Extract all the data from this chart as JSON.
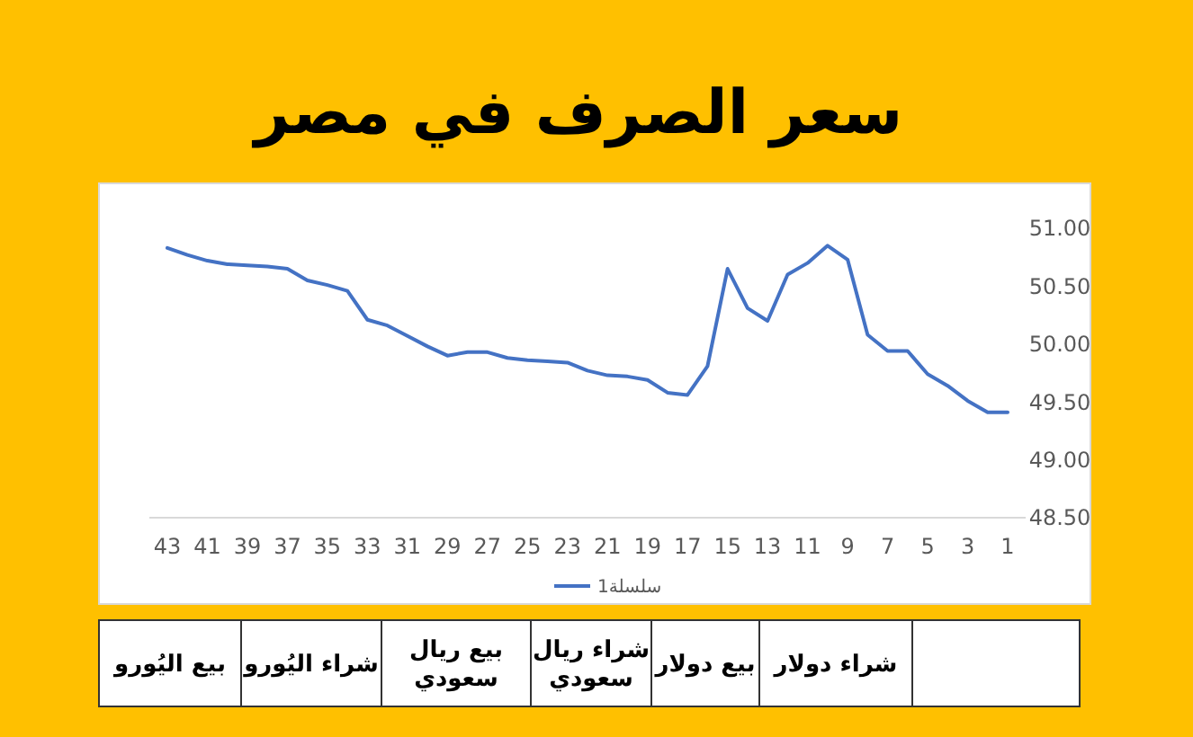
{
  "chart_data": {
    "type": "line",
    "title": "سعر الصرف في مصر",
    "categories": [
      "43",
      null,
      "41",
      null,
      "39",
      null,
      "37",
      null,
      "35",
      null,
      "33",
      null,
      "31",
      null,
      "29",
      null,
      "27",
      null,
      "25",
      null,
      "23",
      null,
      "21",
      null,
      "19",
      null,
      "17",
      null,
      "15",
      null,
      "13",
      null,
      "11",
      null,
      "9",
      null,
      "7",
      null,
      "5",
      null,
      "3",
      null,
      "1"
    ],
    "series": [
      {
        "name": "سلسلة1",
        "color": "#4472c4",
        "values": [
          50.83,
          50.77,
          50.72,
          50.69,
          50.68,
          50.67,
          50.65,
          50.55,
          50.51,
          50.46,
          50.21,
          50.16,
          50.07,
          49.98,
          49.9,
          49.93,
          49.93,
          49.88,
          49.86,
          49.85,
          49.84,
          49.77,
          49.73,
          49.72,
          49.69,
          49.58,
          49.56,
          49.81,
          50.65,
          50.31,
          50.2,
          50.6,
          50.7,
          50.85,
          50.73,
          50.08,
          49.94,
          49.94,
          49.74,
          49.64,
          49.51,
          49.41,
          49.41
        ]
      }
    ],
    "ylim": [
      48.5,
      51
    ],
    "yticks": [
      {
        "value": 48.5,
        "label": "48.50"
      },
      {
        "value": 49,
        "label": "49.00"
      },
      {
        "value": 49.5,
        "label": "49.50"
      },
      {
        "value": 50,
        "label": "50.00"
      },
      {
        "value": 50.5,
        "label": "50.50"
      },
      {
        "value": 51,
        "label": "51.00"
      }
    ],
    "grid": false,
    "legend": "bottom",
    "marker": "none",
    "line_style": "solid",
    "annotations": [
      "شراء دولار",
      "بيع دولار",
      "شراء ريال سعودي",
      "بيع ريال سعودي",
      "شراء اليُورو",
      "بيع اليُورو"
    ]
  }
}
